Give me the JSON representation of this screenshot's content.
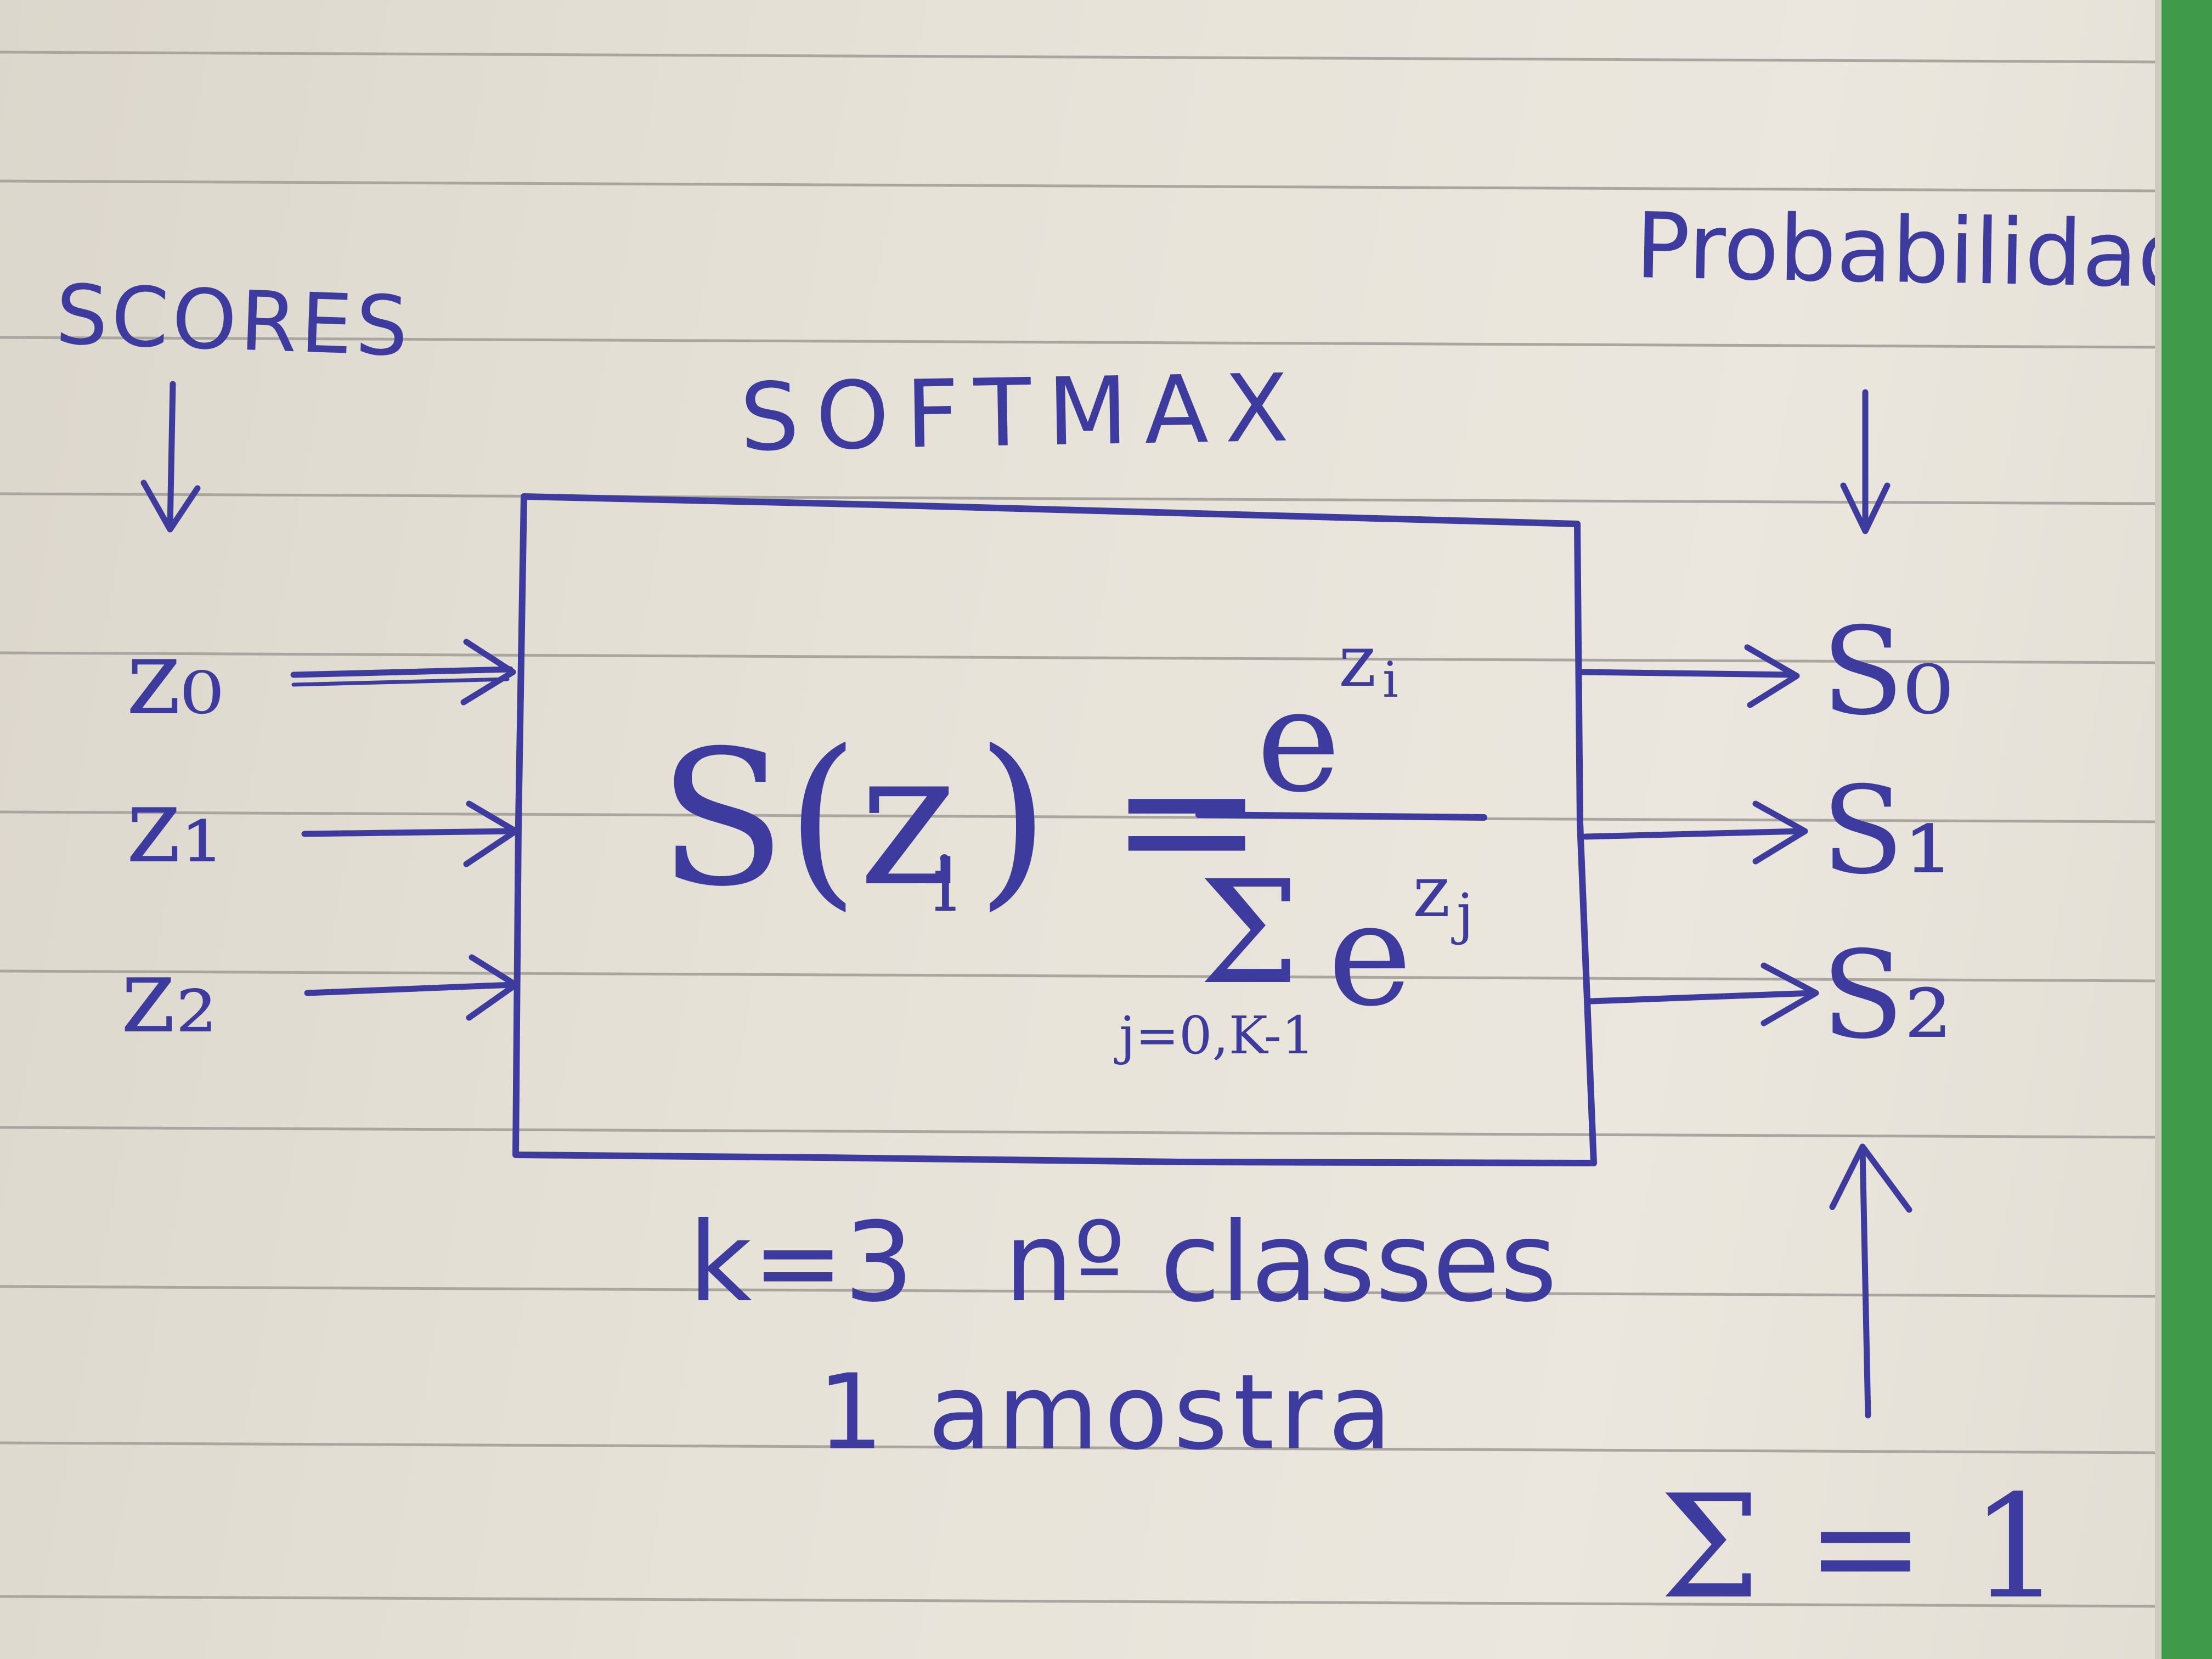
{
  "inputs_title": "SCORES",
  "block_title": "SOFTMAX",
  "outputs_title": "Probabilidades",
  "inputs": [
    "z₀",
    "z₁",
    "z₂"
  ],
  "outputs": [
    "S₀",
    "S₁",
    "S₂"
  ],
  "formula": {
    "lhs": "S(z",
    "lhs_sub": "i",
    "lhs_close": ") =",
    "numerator_base": "e",
    "numerator_exp": "z",
    "numerator_exp_sub": "i",
    "denominator_sum": "Σ",
    "denominator_base": "e",
    "denominator_exp": "z",
    "denominator_exp_sub": "j",
    "sum_range": "j=0,K-1"
  },
  "k_note": "k=3",
  "classes_note": "nº classes",
  "sample_note": "1 amostra",
  "sum_note": "Σ = 1",
  "colors": {
    "ink": "#3d3b9e",
    "paper": "#e6e2d8",
    "rule": "#a9a6a0",
    "background": "#3f9a49"
  }
}
